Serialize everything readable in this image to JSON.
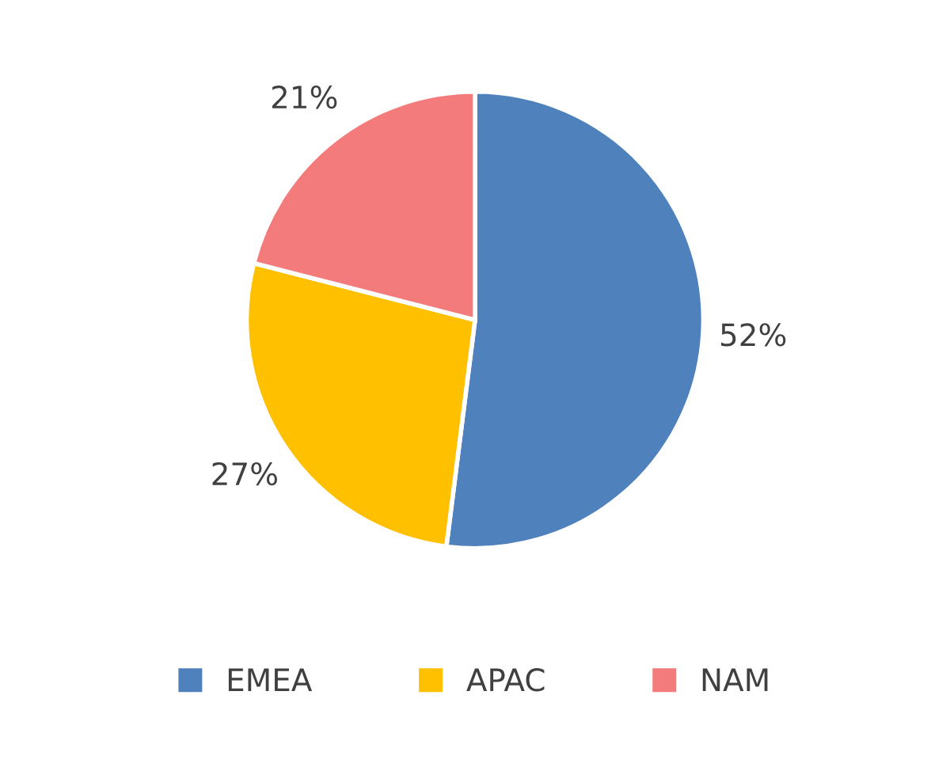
{
  "chart_data": {
    "type": "pie",
    "categories": [
      "EMEA",
      "APAC",
      "NAM"
    ],
    "values": [
      52,
      27,
      21
    ],
    "value_labels": [
      "52%",
      "27%",
      "21%"
    ],
    "colors": [
      "#4f81bd",
      "#ffc000",
      "#f47b7b"
    ],
    "legend": "bottom"
  }
}
